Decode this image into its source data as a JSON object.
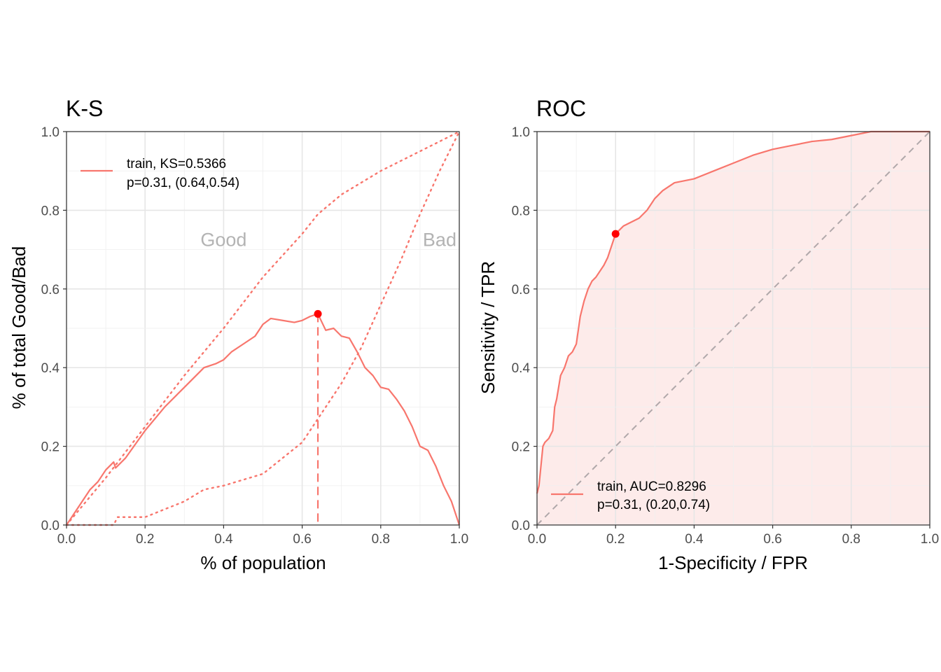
{
  "chart_data": [
    {
      "type": "line",
      "title": "K-S",
      "xlabel": "% of population",
      "ylabel": "% of total Good/Bad",
      "xlim": [
        0,
        1
      ],
      "ylim": [
        0,
        1
      ],
      "xticks": [
        "0.0",
        "0.2",
        "0.4",
        "0.6",
        "0.8",
        "1.0"
      ],
      "yticks": [
        "0.0",
        "0.2",
        "0.4",
        "0.6",
        "0.8",
        "1.0"
      ],
      "grid": true,
      "legend_position": "top-left",
      "legend": [
        {
          "line1": "train, KS=0.5366",
          "line2": "p=0.31, (0.64,0.54)"
        }
      ],
      "annotations": [
        {
          "text": "Good",
          "x": 0.4,
          "y": 0.725
        },
        {
          "text": "Bad",
          "x": 0.95,
          "y": 0.725
        }
      ],
      "color": "#F8766D",
      "max_point_color": "#FF0000",
      "series": [
        {
          "name": "train",
          "style": "solid",
          "x": [
            0,
            0.02,
            0.04,
            0.06,
            0.08,
            0.1,
            0.12,
            0.125,
            0.15,
            0.2,
            0.25,
            0.28,
            0.3,
            0.35,
            0.38,
            0.4,
            0.42,
            0.45,
            0.48,
            0.5,
            0.52,
            0.55,
            0.58,
            0.6,
            0.62,
            0.64,
            0.66,
            0.68,
            0.7,
            0.72,
            0.74,
            0.76,
            0.78,
            0.8,
            0.82,
            0.84,
            0.86,
            0.88,
            0.9,
            0.92,
            0.94,
            0.96,
            0.98,
            1.0
          ],
          "y": [
            0,
            0.03,
            0.06,
            0.09,
            0.11,
            0.14,
            0.16,
            0.145,
            0.17,
            0.24,
            0.3,
            0.33,
            0.35,
            0.4,
            0.41,
            0.42,
            0.44,
            0.46,
            0.48,
            0.51,
            0.525,
            0.52,
            0.515,
            0.52,
            0.53,
            0.5366,
            0.495,
            0.5,
            0.48,
            0.475,
            0.44,
            0.4,
            0.38,
            0.35,
            0.345,
            0.32,
            0.29,
            0.25,
            0.2,
            0.19,
            0.15,
            0.1,
            0.06,
            0.0
          ]
        },
        {
          "name": "Good",
          "style": "dotted",
          "x": [
            0,
            0.1,
            0.2,
            0.3,
            0.4,
            0.5,
            0.6,
            0.64,
            0.7,
            0.8,
            0.9,
            1.0
          ],
          "y": [
            0,
            0.12,
            0.25,
            0.38,
            0.5,
            0.63,
            0.74,
            0.79,
            0.84,
            0.9,
            0.95,
            1.0
          ]
        },
        {
          "name": "Bad",
          "style": "dotted",
          "x": [
            0,
            0.06,
            0.12,
            0.13,
            0.2,
            0.3,
            0.35,
            0.4,
            0.5,
            0.55,
            0.6,
            0.64,
            0.7,
            0.75,
            0.8,
            0.85,
            0.9,
            0.95,
            0.98,
            1.0
          ],
          "y": [
            0,
            0.0,
            0.0,
            0.02,
            0.02,
            0.06,
            0.09,
            0.1,
            0.13,
            0.17,
            0.21,
            0.27,
            0.36,
            0.45,
            0.56,
            0.67,
            0.79,
            0.9,
            0.96,
            1.0
          ]
        }
      ],
      "marker": {
        "x": 0.64,
        "y": 0.5366
      }
    },
    {
      "type": "area",
      "title": "ROC",
      "xlabel": "1-Specificity / FPR",
      "ylabel": "Sensitivity / TPR",
      "xlim": [
        0,
        1
      ],
      "ylim": [
        0,
        1
      ],
      "xticks": [
        "0.0",
        "0.2",
        "0.4",
        "0.6",
        "0.8",
        "1.0"
      ],
      "yticks": [
        "0.0",
        "0.2",
        "0.4",
        "0.6",
        "0.8",
        "1.0"
      ],
      "grid": true,
      "legend_position": "bottom-left",
      "legend": [
        {
          "line1": "train, AUC=0.8296",
          "line2": "p=0.31, (0.20,0.74)"
        }
      ],
      "color": "#F8766D",
      "fill_color": "#FDEBEA",
      "max_point_color": "#FF0000",
      "series": [
        {
          "name": "train",
          "x": [
            0,
            0.005,
            0.01,
            0.015,
            0.02,
            0.03,
            0.04,
            0.045,
            0.05,
            0.06,
            0.07,
            0.08,
            0.09,
            0.1,
            0.11,
            0.12,
            0.13,
            0.14,
            0.15,
            0.17,
            0.18,
            0.2,
            0.22,
            0.24,
            0.26,
            0.28,
            0.3,
            0.32,
            0.35,
            0.4,
            0.45,
            0.5,
            0.55,
            0.6,
            0.65,
            0.7,
            0.75,
            0.8,
            0.85,
            0.92,
            1.0
          ],
          "y": [
            0.08,
            0.1,
            0.15,
            0.2,
            0.21,
            0.22,
            0.24,
            0.3,
            0.32,
            0.38,
            0.4,
            0.43,
            0.44,
            0.46,
            0.53,
            0.57,
            0.6,
            0.62,
            0.63,
            0.66,
            0.68,
            0.74,
            0.76,
            0.77,
            0.78,
            0.8,
            0.83,
            0.85,
            0.87,
            0.88,
            0.9,
            0.92,
            0.94,
            0.955,
            0.965,
            0.975,
            0.98,
            0.99,
            1.0,
            1.0,
            1.0
          ]
        }
      ],
      "reference_line": {
        "x": [
          0,
          1
        ],
        "y": [
          0,
          1
        ],
        "color": "#B0A8AA"
      },
      "marker": {
        "x": 0.2,
        "y": 0.74
      }
    }
  ]
}
